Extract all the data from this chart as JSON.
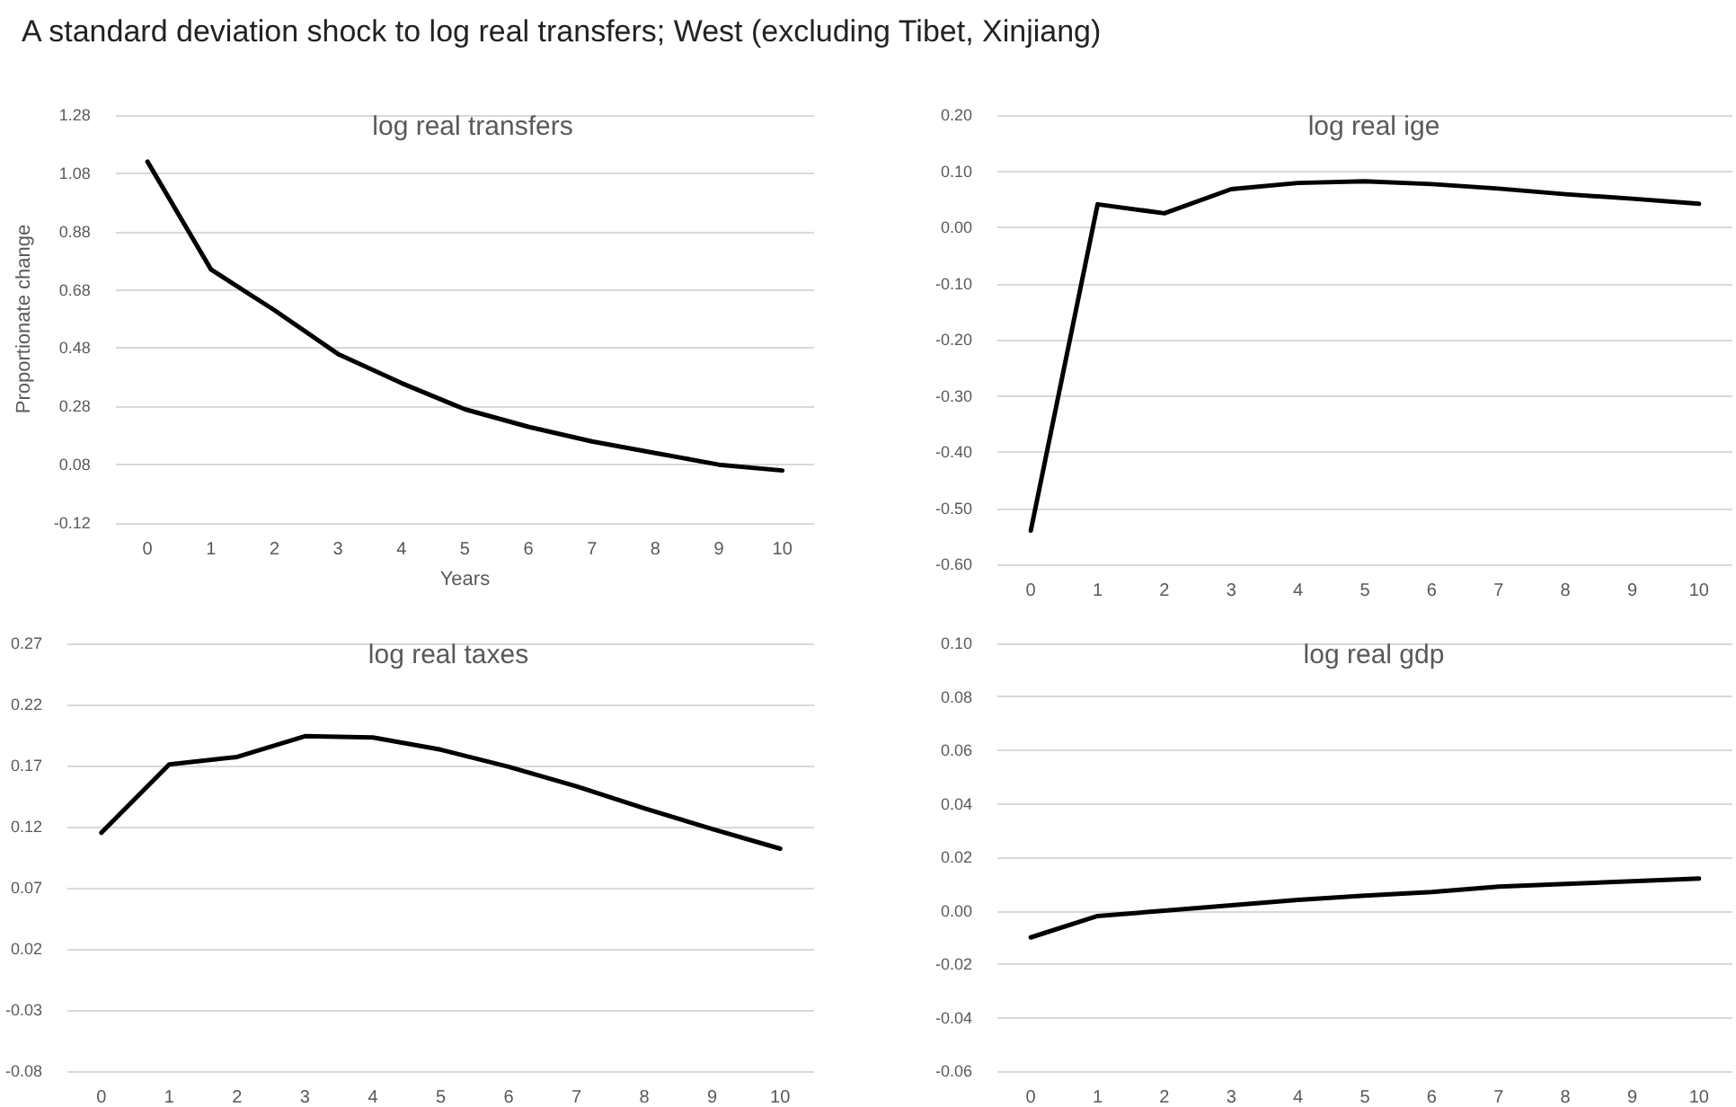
{
  "chart_data": [
    {
      "type": "line",
      "title": "A standard deviation shock to log real transfers; West (excluding Tibet, Xinjiang)",
      "subtitle": "log real transfers",
      "xlabel": "Years",
      "ylabel": "Proportionate change",
      "categories": [
        "0",
        "1",
        "2",
        "3",
        "4",
        "5",
        "6",
        "7",
        "8",
        "9",
        "10"
      ],
      "series": [
        {
          "color": "#000000",
          "values": [
            1.12,
            0.75,
            0.61,
            0.46,
            0.36,
            0.27,
            0.21,
            0.16,
            0.12,
            0.08,
            0.06
          ]
        }
      ],
      "ylim": [
        -0.12,
        1.28
      ],
      "yticks": [
        {
          "value": -0.12,
          "label": "-0.12"
        },
        {
          "value": 0.08,
          "label": "0.08"
        },
        {
          "value": 0.28,
          "label": "0.28"
        },
        {
          "value": 0.48,
          "label": "0.48"
        },
        {
          "value": 0.68,
          "label": "0.68"
        },
        {
          "value": 0.88,
          "label": "0.88"
        },
        {
          "value": 1.08,
          "label": "1.08"
        },
        {
          "value": 1.28,
          "label": "1.28"
        }
      ],
      "grid": "y",
      "marker": "none",
      "line_style": "solid"
    },
    {
      "type": "line",
      "subtitle": "log real ige",
      "categories": [
        "0",
        "1",
        "2",
        "3",
        "4",
        "5",
        "6",
        "7",
        "8",
        "9",
        "10"
      ],
      "series": [
        {
          "color": "#000000",
          "values": [
            -0.54,
            0.041,
            0.025,
            0.068,
            0.079,
            0.082,
            0.077,
            0.069,
            0.059,
            0.051,
            0.042
          ]
        }
      ],
      "ylim": [
        -0.6,
        0.2
      ],
      "yticks": [
        {
          "value": -0.6,
          "label": "-0.60"
        },
        {
          "value": -0.5,
          "label": "-0.50"
        },
        {
          "value": -0.4,
          "label": "-0.40"
        },
        {
          "value": -0.3,
          "label": "-0.30"
        },
        {
          "value": -0.2,
          "label": "-0.20"
        },
        {
          "value": -0.1,
          "label": "-0.10"
        },
        {
          "value": 0,
          "label": "0.00"
        },
        {
          "value": 0.1,
          "label": "0.10"
        },
        {
          "value": 0.2,
          "label": "0.20"
        }
      ],
      "grid": "y",
      "marker": "none",
      "line_style": "solid"
    },
    {
      "type": "line",
      "subtitle": "log real taxes",
      "categories": [
        "0",
        "1",
        "2",
        "3",
        "4",
        "5",
        "6",
        "7",
        "8",
        "9",
        "10"
      ],
      "series": [
        {
          "color": "#000000",
          "values": [
            0.115,
            0.171,
            0.177,
            0.194,
            0.193,
            0.183,
            0.169,
            0.153,
            0.135,
            0.118,
            0.102
          ]
        }
      ],
      "ylim": [
        -0.08,
        0.27
      ],
      "yticks": [
        {
          "value": -0.08,
          "label": "-0.08"
        },
        {
          "value": -0.03,
          "label": "-0.03"
        },
        {
          "value": 0.02,
          "label": "0.02"
        },
        {
          "value": 0.07,
          "label": "0.07"
        },
        {
          "value": 0.12,
          "label": "0.12"
        },
        {
          "value": 0.17,
          "label": "0.17"
        },
        {
          "value": 0.22,
          "label": "0.22"
        },
        {
          "value": 0.27,
          "label": "0.27"
        }
      ],
      "grid": "y",
      "marker": "none",
      "line_style": "solid"
    },
    {
      "type": "line",
      "subtitle": "log real gdp",
      "categories": [
        "0",
        "1",
        "2",
        "3",
        "4",
        "5",
        "6",
        "7",
        "8",
        "9",
        "10"
      ],
      "series": [
        {
          "color": "#000000",
          "values": [
            -0.01,
            -0.002,
            0.0,
            0.002,
            0.004,
            0.0056,
            0.007,
            0.009,
            0.01,
            0.011,
            0.012
          ]
        }
      ],
      "ylim": [
        -0.06,
        0.1
      ],
      "yticks": [
        {
          "value": -0.06,
          "label": "-0.06"
        },
        {
          "value": -0.04,
          "label": "-0.04"
        },
        {
          "value": -0.02,
          "label": "-0.02"
        },
        {
          "value": 0,
          "label": "0.00"
        },
        {
          "value": 0.02,
          "label": "0.02"
        },
        {
          "value": 0.04,
          "label": "0.04"
        },
        {
          "value": 0.06,
          "label": "0.06"
        },
        {
          "value": 0.08,
          "label": "0.08"
        },
        {
          "value": 0.1,
          "label": "0.10"
        }
      ],
      "grid": "y",
      "marker": "none",
      "line_style": "solid"
    }
  ]
}
